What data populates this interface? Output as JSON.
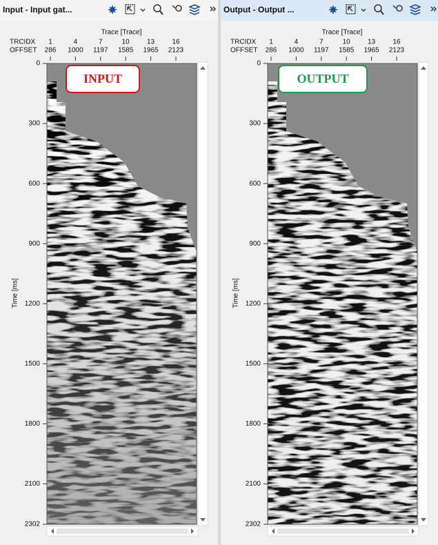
{
  "panels": [
    {
      "title": "Input - Input gat...",
      "badge": "INPUT",
      "trace_axis_label": "Trace [Trace]",
      "trcidx_label": "TRCIDX",
      "offset_label": "OFFSET",
      "trcidx": [
        1,
        4,
        7,
        10,
        13,
        16
      ],
      "offsets": [
        286,
        1000,
        1197,
        1585,
        1965,
        2123
      ],
      "time_label": "Time [ms]",
      "time_ticks": [
        0,
        300,
        600,
        900,
        1200,
        1500,
        1800,
        2100,
        2302
      ]
    },
    {
      "title": "Output - Output ...",
      "badge": "OUTPUT",
      "trace_axis_label": "Trace [Trace]",
      "trcidx_label": "TRCIDX",
      "offset_label": "OFFSET",
      "trcidx": [
        1,
        4,
        7,
        10,
        13,
        16
      ],
      "offsets": [
        286,
        1000,
        1197,
        1585,
        1965,
        2123
      ],
      "time_label": "Time [ms]",
      "time_ticks": [
        0,
        300,
        600,
        900,
        1200,
        1500,
        1800,
        2100,
        2302
      ]
    }
  ]
}
